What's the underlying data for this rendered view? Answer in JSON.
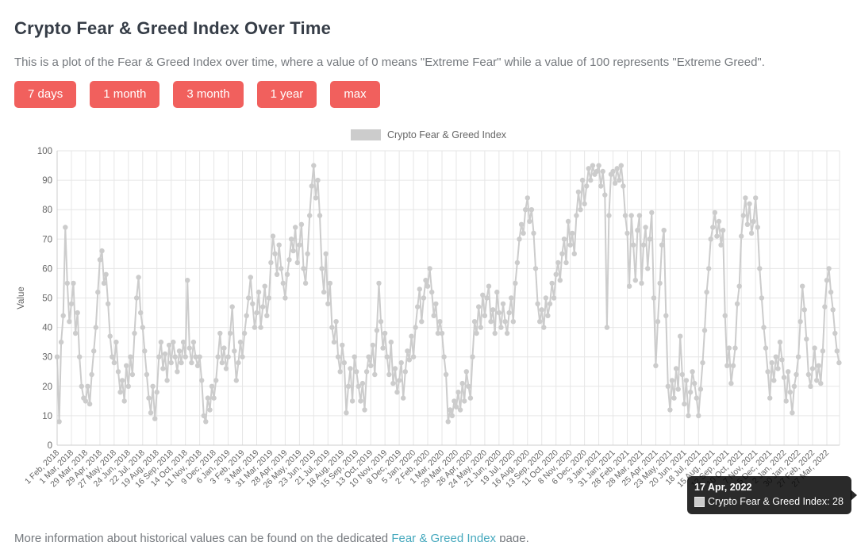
{
  "page": {
    "title": "Crypto Fear & Greed Index Over Time",
    "description": "This is a plot of the Fear & Greed Index over time, where a value of 0 means \"Extreme Fear\" while a value of 100 represents \"Extreme Greed\".",
    "footer": {
      "prefix": "More information about historical values can be found on the dedicated ",
      "link_text": "Fear & Greed Index",
      "suffix": " page."
    }
  },
  "buttons": [
    {
      "label": "7 days"
    },
    {
      "label": "1 month"
    },
    {
      "label": "3 month"
    },
    {
      "label": "1 year"
    },
    {
      "label": "max"
    }
  ],
  "colors": {
    "accent_button": "#f1605d",
    "link": "#44a8bd",
    "series": "#cccccc",
    "grid": "#e6e6e6",
    "axis_line": "#cccccc",
    "axis_text": "#666666",
    "title_text": "#363d47",
    "body_text": "#75797e",
    "tooltip_bg": "rgba(5,5,5,0.85)"
  },
  "tooltip": {
    "date": "17 Apr, 2022",
    "text": "Crypto Fear & Greed Index: 28"
  },
  "chart_data": {
    "type": "line",
    "title": "",
    "legend": "Crypto Fear & Greed Index",
    "legend_position": "top-center",
    "xlabel": "",
    "ylabel": "Value",
    "ylim": [
      0,
      100
    ],
    "y_ticks": [
      0,
      10,
      20,
      30,
      40,
      50,
      60,
      70,
      80,
      90,
      100
    ],
    "grid": true,
    "marker_style": "dots-with-line",
    "x_tick_labels": [
      "1 Feb, 2018",
      "1 Mar, 2018",
      "29 Mar, 2018",
      "29 Apr, 2018",
      "27 May, 2018",
      "24 Jun, 2018",
      "22 Jul, 2018",
      "19 Aug, 2018",
      "16 Sep, 2018",
      "14 Oct, 2018",
      "11 Nov, 2018",
      "9 Dec, 2018",
      "6 Jan, 2019",
      "3 Feb, 2019",
      "3 Mar, 2019",
      "31 Mar, 2019",
      "28 Apr, 2019",
      "26 May, 2019",
      "23 Jun, 2019",
      "21 Jul, 2019",
      "18 Aug, 2019",
      "15 Sep, 2019",
      "13 Oct, 2019",
      "10 Nov, 2019",
      "8 Dec, 2019",
      "5 Jan, 2020",
      "2 Feb, 2020",
      "1 Mar, 2020",
      "29 Mar, 2020",
      "26 Apr, 2020",
      "24 May, 2020",
      "21 Jun, 2020",
      "19 Jul, 2020",
      "16 Aug, 2020",
      "13 Sep, 2020",
      "11 Oct, 2020",
      "8 Nov, 2020",
      "6 Dec, 2020",
      "3 Jan, 2021",
      "31 Jan, 2021",
      "28 Feb, 2021",
      "28 Mar, 2021",
      "25 Apr, 2021",
      "23 May, 2021",
      "20 Jun, 2021",
      "18 Jul, 2021",
      "15 Aug, 2021",
      "12 Sep, 2021",
      "10 Oct, 2021",
      "7 Nov, 2021",
      "5 Dec, 2021",
      "2 Jan, 2022",
      "30 Jan, 2022",
      "27 Feb, 2022",
      "27 Mar, 2022"
    ],
    "samples_per_tick_interval": 7,
    "sample_step_days": 4,
    "series": [
      {
        "name": "Crypto Fear & Greed Index",
        "color": "#cccccc",
        "values": [
          30,
          8,
          35,
          44,
          74,
          55,
          42,
          48,
          55,
          38,
          45,
          30,
          20,
          16,
          15,
          20,
          14,
          24,
          32,
          40,
          52,
          63,
          66,
          55,
          58,
          48,
          37,
          30,
          28,
          35,
          25,
          18,
          22,
          15,
          27,
          20,
          30,
          24,
          38,
          50,
          57,
          45,
          40,
          32,
          24,
          16,
          11,
          20,
          9,
          18,
          30,
          35,
          26,
          31,
          22,
          34,
          28,
          35,
          30,
          25,
          32,
          28,
          35,
          30,
          56,
          33,
          28,
          35,
          30,
          27,
          30,
          22,
          10,
          8,
          16,
          12,
          20,
          16,
          22,
          30,
          38,
          28,
          33,
          26,
          30,
          38,
          47,
          32,
          22,
          28,
          35,
          30,
          38,
          44,
          50,
          57,
          48,
          40,
          45,
          52,
          40,
          47,
          54,
          44,
          50,
          62,
          71,
          65,
          58,
          68,
          60,
          55,
          50,
          58,
          63,
          70,
          66,
          74,
          62,
          68,
          75,
          60,
          55,
          65,
          78,
          88,
          95,
          84,
          90,
          78,
          60,
          52,
          65,
          48,
          55,
          40,
          35,
          42,
          30,
          25,
          34,
          28,
          11,
          20,
          26,
          15,
          30,
          25,
          20,
          15,
          21,
          12,
          25,
          30,
          27,
          34,
          24,
          39,
          55,
          42,
          33,
          38,
          30,
          24,
          35,
          21,
          26,
          18,
          22,
          28,
          16,
          25,
          32,
          29,
          37,
          30,
          40,
          47,
          53,
          42,
          50,
          56,
          54,
          60,
          52,
          44,
          48,
          38,
          42,
          38,
          30,
          24,
          8,
          12,
          10,
          15,
          13,
          18,
          12,
          21,
          15,
          25,
          20,
          16,
          30,
          42,
          38,
          47,
          40,
          51,
          44,
          50,
          54,
          42,
          46,
          38,
          52,
          45,
          40,
          48,
          42,
          38,
          45,
          50,
          42,
          55,
          62,
          70,
          75,
          72,
          80,
          84,
          76,
          80,
          72,
          60,
          48,
          42,
          46,
          40,
          50,
          44,
          48,
          55,
          50,
          58,
          62,
          56,
          65,
          70,
          62,
          76,
          68,
          72,
          65,
          78,
          86,
          80,
          90,
          82,
          88,
          94,
          90,
          95,
          92,
          93,
          95,
          88,
          93,
          85,
          40,
          78,
          92,
          93,
          89,
          94,
          90,
          95,
          88,
          78,
          72,
          54,
          78,
          68,
          56,
          73,
          78,
          55,
          68,
          74,
          60,
          70,
          79,
          50,
          27,
          42,
          55,
          68,
          73,
          44,
          20,
          12,
          22,
          16,
          26,
          19,
          37,
          24,
          14,
          22,
          10,
          18,
          25,
          21,
          16,
          10,
          19,
          28,
          39,
          52,
          60,
          70,
          74,
          79,
          71,
          76,
          68,
          73,
          44,
          27,
          33,
          21,
          27,
          33,
          48,
          54,
          71,
          78,
          84,
          75,
          82,
          72,
          76,
          84,
          74,
          60,
          50,
          40,
          33,
          25,
          16,
          28,
          22,
          30,
          26,
          35,
          29,
          23,
          15,
          25,
          18,
          11,
          20,
          24,
          30,
          42,
          54,
          46,
          36,
          24,
          20,
          26,
          33,
          22,
          27,
          21,
          32,
          47,
          56,
          60,
          52,
          46,
          38,
          32,
          28
        ]
      }
    ],
    "last_point": {
      "date": "17 Apr, 2022",
      "value": 28
    }
  }
}
